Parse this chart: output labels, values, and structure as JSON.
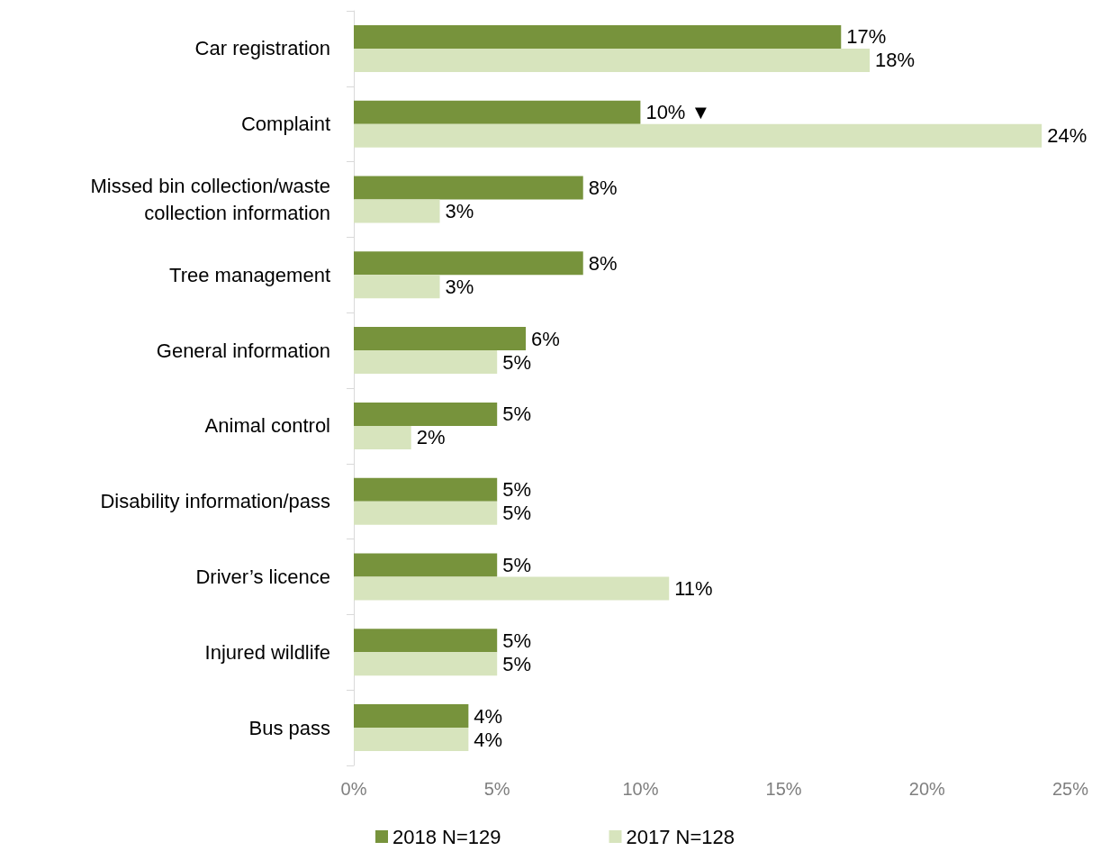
{
  "chart_data": {
    "type": "bar",
    "orientation": "horizontal",
    "categories": [
      "Car registration",
      "Complaint",
      "Missed bin collection/waste collection information",
      "Tree management",
      "General information",
      "Animal control",
      "Disability information/pass",
      "Driver’s licence",
      "Injured wildlife",
      "Bus pass"
    ],
    "series": [
      {
        "name": "2018 N=129",
        "color": "#77933c",
        "values": [
          17,
          10,
          8,
          8,
          6,
          5,
          5,
          5,
          5,
          4
        ],
        "value_labels": [
          "17%",
          "10% ▼",
          "8%",
          "8%",
          "6%",
          "5%",
          "5%",
          "5%",
          "5%",
          "4%"
        ]
      },
      {
        "name": "2017 N=128",
        "color": "#d7e4bd",
        "values": [
          18,
          24,
          3,
          3,
          5,
          2,
          5,
          11,
          5,
          4
        ],
        "value_labels": [
          "18%",
          "24%",
          "3%",
          "3%",
          "5%",
          "2%",
          "5%",
          "11%",
          "5%",
          "4%"
        ]
      }
    ],
    "xlim": [
      0,
      25
    ],
    "xticks": [
      {
        "value": 0,
        "label": "0%"
      },
      {
        "value": 5,
        "label": "5%"
      },
      {
        "value": 10,
        "label": "10%"
      },
      {
        "value": 15,
        "label": "15%"
      },
      {
        "value": 20,
        "label": "20%"
      },
      {
        "value": 25,
        "label": "25%"
      }
    ],
    "grid": false,
    "legend": "bottom"
  }
}
